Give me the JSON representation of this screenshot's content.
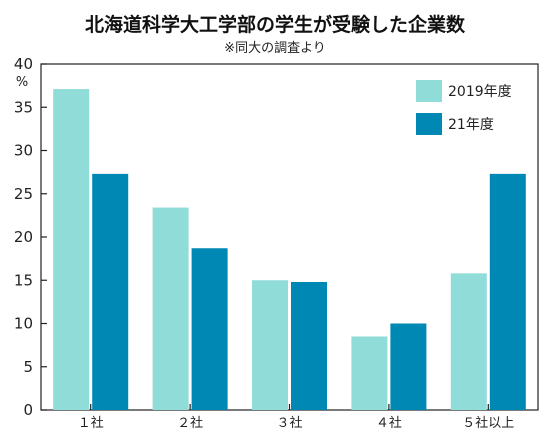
{
  "chart_data": {
    "type": "bar",
    "title": "北海道科学大工学部の学生が受験した企業数",
    "subtitle": "※同大の調査より",
    "ylabel": "%",
    "ylim": [
      0,
      40
    ],
    "yticks": [
      0,
      5,
      10,
      15,
      20,
      25,
      30,
      35,
      40
    ],
    "categories": [
      "1社",
      "2社",
      "3社",
      "4社",
      "5社以上"
    ],
    "category_labels": [
      "１社",
      "２社",
      "３社",
      "４社",
      "５社以上"
    ],
    "series": [
      {
        "name": "2019年度",
        "color": "#8fdcd8",
        "values": [
          37.1,
          23.4,
          15.0,
          8.5,
          15.8
        ]
      },
      {
        "name": "21年度",
        "color": "#0088b4",
        "values": [
          27.3,
          18.7,
          14.8,
          10.0,
          27.3
        ]
      }
    ],
    "legend": "top-right",
    "grid": false
  }
}
